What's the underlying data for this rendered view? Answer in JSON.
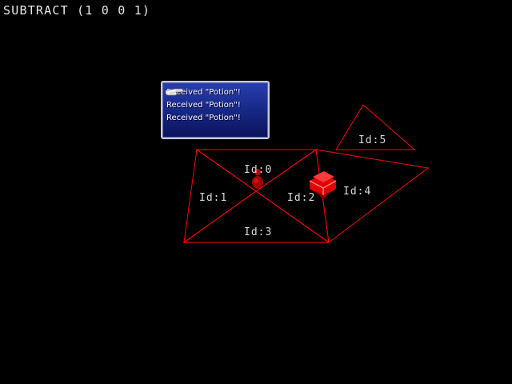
{
  "debug": {
    "title": "SUBTRACT (1 0 0 1)"
  },
  "walkmesh": {
    "line_color": "#ff0000",
    "triangles": [
      {
        "label": "Id:0"
      },
      {
        "label": "Id:1"
      },
      {
        "label": "Id:2"
      },
      {
        "label": "Id:3"
      },
      {
        "label": "Id:4"
      },
      {
        "label": "Id:5"
      }
    ]
  },
  "dialog": {
    "lines": [
      "Received \"Potion\"!",
      "Received \"Potion\"!",
      "Received \"Potion\"!"
    ],
    "pointer_icon": "pointing-hand-icon"
  },
  "player": {
    "marker_color": "#cc0000"
  },
  "chest": {
    "color": "#ff1a1a"
  }
}
